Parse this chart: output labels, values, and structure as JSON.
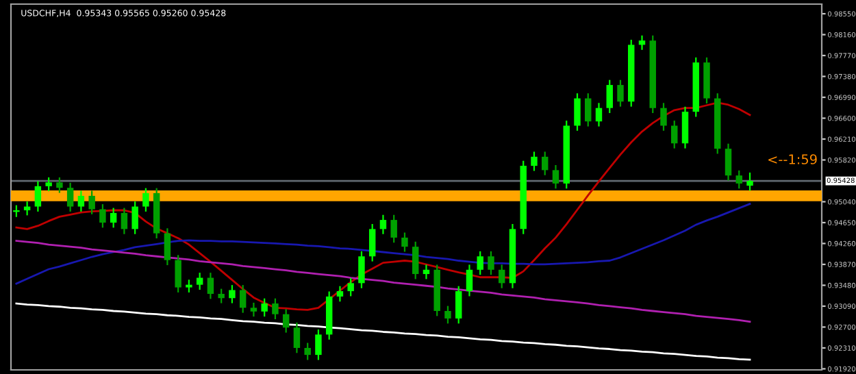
{
  "chart_data": {
    "type": "candlestick",
    "title": "USDCHF,H4  0.95343 0.95565 0.95260 0.95428",
    "colors": [
      "#00ff00",
      "#00ff00",
      "#00ff00",
      "#00ff00",
      "#00a000",
      "#00a000",
      "#00ff00",
      "#00a000",
      "#00a000",
      "#00ff00",
      "#00a000",
      "#00ff00",
      "#00ff00",
      "#00a000",
      "#00a000",
      "#00a000",
      "#00ff00",
      "#00ff00",
      "#00a000",
      "#00a000",
      "#00ff00",
      "#00a000",
      "#00a000",
      "#00ff00",
      "#00a000",
      "#00a000",
      "#00a000",
      "#00a000",
      "#00ff00",
      "#00ff00",
      "#00ff00",
      "#00ff00",
      "#00ff00",
      "#00ff00",
      "#00ff00",
      "#00a000",
      "#00a000",
      "#00a000",
      "#00ff00",
      "#00a000",
      "#00a000",
      "#00ff00",
      "#00ff00",
      "#00ff00",
      "#00a000",
      "#00a000",
      "#00ff00",
      "#00ff00",
      "#00ff00",
      "#00a000",
      "#00a000",
      "#00ff00",
      "#00ff00",
      "#00a000",
      "#00ff00",
      "#00ff00",
      "#00a000",
      "#00ff00",
      "#00ff00",
      "#00a000",
      "#00a000",
      "#00a000",
      "#00ff00",
      "#00ff00",
      "#00a000",
      "#00a000",
      "#00a000",
      "#00a000",
      "#00ff00"
    ],
    "categories": [
      null,
      null,
      null,
      null,
      null,
      null,
      null,
      null,
      null,
      null,
      null,
      null,
      null,
      null,
      null,
      null,
      null,
      null,
      null,
      null,
      null,
      null,
      null,
      null,
      null,
      null,
      null,
      null,
      null,
      null,
      null,
      null,
      null,
      null,
      null,
      null,
      null,
      null,
      null,
      null,
      null,
      null,
      null,
      null,
      null,
      null,
      null,
      null,
      null,
      null,
      null,
      null,
      null,
      null,
      null,
      null,
      null,
      null,
      null,
      null,
      null,
      null,
      null,
      null,
      null,
      null,
      null,
      null,
      null
    ],
    "ohlc": [
      [
        0.9485,
        0.9496,
        0.9477,
        0.9488
      ],
      [
        0.9488,
        0.9503,
        0.948,
        0.9495
      ],
      [
        0.9495,
        0.9541,
        0.9487,
        0.9533
      ],
      [
        0.9533,
        0.9548,
        0.9525,
        0.954
      ],
      [
        0.954,
        0.9548,
        0.9522,
        0.953
      ],
      [
        0.953,
        0.9538,
        0.9487,
        0.9495
      ],
      [
        0.9495,
        0.9523,
        0.9487,
        0.9515
      ],
      [
        0.9515,
        0.9523,
        0.9482,
        0.949
      ],
      [
        0.949,
        0.9498,
        0.9457,
        0.9465
      ],
      [
        0.9465,
        0.9491,
        0.9457,
        0.9483
      ],
      [
        0.9483,
        0.9491,
        0.9445,
        0.9453
      ],
      [
        0.9453,
        0.9503,
        0.9445,
        0.9495
      ],
      [
        0.9495,
        0.9528,
        0.9487,
        0.952
      ],
      [
        0.952,
        0.9528,
        0.9437,
        0.9445
      ],
      [
        0.9445,
        0.9453,
        0.9387,
        0.9395
      ],
      [
        0.9395,
        0.9403,
        0.9336,
        0.9344
      ],
      [
        0.9344,
        0.9357,
        0.9336,
        0.9349
      ],
      [
        0.9349,
        0.937,
        0.9341,
        0.9362
      ],
      [
        0.9362,
        0.937,
        0.9324,
        0.9332
      ],
      [
        0.9332,
        0.934,
        0.9316,
        0.9324
      ],
      [
        0.9324,
        0.9347,
        0.9316,
        0.9339
      ],
      [
        0.9339,
        0.9347,
        0.9298,
        0.9306
      ],
      [
        0.9306,
        0.9314,
        0.9291,
        0.9299
      ],
      [
        0.9299,
        0.9322,
        0.9291,
        0.9314
      ],
      [
        0.9314,
        0.9322,
        0.9286,
        0.9294
      ],
      [
        0.9294,
        0.9302,
        0.9261,
        0.9269
      ],
      [
        0.9269,
        0.9277,
        0.9223,
        0.9231
      ],
      [
        0.9231,
        0.9239,
        0.921,
        0.9218
      ],
      [
        0.9218,
        0.9264,
        0.921,
        0.9256
      ],
      [
        0.9256,
        0.9335,
        0.9248,
        0.9327
      ],
      [
        0.9327,
        0.9345,
        0.9319,
        0.9337
      ],
      [
        0.9337,
        0.936,
        0.9329,
        0.9352
      ],
      [
        0.9352,
        0.941,
        0.9344,
        0.9402
      ],
      [
        0.9402,
        0.9461,
        0.9394,
        0.9453
      ],
      [
        0.9453,
        0.9478,
        0.9445,
        0.947
      ],
      [
        0.947,
        0.9478,
        0.9429,
        0.9437
      ],
      [
        0.9437,
        0.9445,
        0.9412,
        0.942
      ],
      [
        0.942,
        0.9428,
        0.9361,
        0.9369
      ],
      [
        0.9369,
        0.9385,
        0.9361,
        0.9377
      ],
      [
        0.9377,
        0.9385,
        0.9292,
        0.93
      ],
      [
        0.93,
        0.9308,
        0.9278,
        0.9286
      ],
      [
        0.9286,
        0.9345,
        0.9278,
        0.9337
      ],
      [
        0.9337,
        0.9385,
        0.9329,
        0.9377
      ],
      [
        0.9377,
        0.941,
        0.9369,
        0.9402
      ],
      [
        0.9402,
        0.941,
        0.9369,
        0.9377
      ],
      [
        0.9377,
        0.9385,
        0.9344,
        0.9352
      ],
      [
        0.9352,
        0.9461,
        0.9344,
        0.9453
      ],
      [
        0.9453,
        0.9579,
        0.9445,
        0.9571
      ],
      [
        0.9571,
        0.9596,
        0.9563,
        0.9588
      ],
      [
        0.9588,
        0.9596,
        0.9555,
        0.9563
      ],
      [
        0.9563,
        0.9571,
        0.953,
        0.9538
      ],
      [
        0.9538,
        0.9654,
        0.953,
        0.9646
      ],
      [
        0.9646,
        0.9705,
        0.9638,
        0.9697
      ],
      [
        0.9697,
        0.9705,
        0.9646,
        0.9654
      ],
      [
        0.9654,
        0.9687,
        0.9646,
        0.9679
      ],
      [
        0.9679,
        0.973,
        0.9671,
        0.9722
      ],
      [
        0.9722,
        0.973,
        0.9683,
        0.9691
      ],
      [
        0.9691,
        0.9805,
        0.9683,
        0.9797
      ],
      [
        0.9797,
        0.9813,
        0.9789,
        0.9805
      ],
      [
        0.9805,
        0.9813,
        0.9671,
        0.9679
      ],
      [
        0.9679,
        0.9687,
        0.9638,
        0.9646
      ],
      [
        0.9646,
        0.9654,
        0.9605,
        0.9613
      ],
      [
        0.9613,
        0.968,
        0.9605,
        0.9672
      ],
      [
        0.9672,
        0.9772,
        0.9664,
        0.9764
      ],
      [
        0.9764,
        0.9772,
        0.9689,
        0.9697
      ],
      [
        0.9697,
        0.9705,
        0.9595,
        0.9603
      ],
      [
        0.9603,
        0.9611,
        0.9545,
        0.9553
      ],
      [
        0.9553,
        0.9561,
        0.953,
        0.9538
      ],
      [
        0.9534,
        0.9557,
        0.9526,
        0.9543
      ]
    ],
    "series": [
      {
        "type": "line",
        "color": "#c00000",
        "values": [
          0.9456,
          0.9453,
          0.9459,
          0.9468,
          0.9476,
          0.948,
          0.9484,
          0.9486,
          0.9487,
          0.9488,
          0.9488,
          0.9483,
          0.9467,
          0.9454,
          0.9445,
          0.9436,
          0.9424,
          0.9408,
          0.9392,
          0.9375,
          0.9358,
          0.9341,
          0.9325,
          0.9315,
          0.9306,
          0.9305,
          0.9303,
          0.9302,
          0.9306,
          0.9322,
          0.9338,
          0.9354,
          0.9368,
          0.9379,
          0.939,
          0.9392,
          0.9394,
          0.9392,
          0.9387,
          0.9382,
          0.9377,
          0.9372,
          0.9368,
          0.9363,
          0.9363,
          0.9363,
          0.9362,
          0.9374,
          0.9395,
          0.9417,
          0.9437,
          0.9462,
          0.9489,
          0.9516,
          0.9542,
          0.9567,
          0.9592,
          0.9615,
          0.9635,
          0.9651,
          0.9664,
          0.9675,
          0.9679,
          0.9679,
          0.9684,
          0.9689,
          0.9685,
          0.9677,
          0.9666
        ]
      },
      {
        "type": "line",
        "color": "#1818b0",
        "values": [
          0.9351,
          0.936,
          0.9369,
          0.9378,
          0.9383,
          0.9389,
          0.9395,
          0.9401,
          0.9406,
          0.941,
          0.9414,
          0.9419,
          0.9422,
          0.9425,
          0.9428,
          0.9431,
          0.9432,
          0.9431,
          0.9431,
          0.943,
          0.943,
          0.9429,
          0.9428,
          0.9427,
          0.9426,
          0.9425,
          0.9424,
          0.9422,
          0.9421,
          0.9419,
          0.9417,
          0.9416,
          0.9414,
          0.9412,
          0.941,
          0.9408,
          0.9406,
          0.9404,
          0.9401,
          0.9399,
          0.9397,
          0.9394,
          0.9392,
          0.939,
          0.9389,
          0.9389,
          0.9388,
          0.9388,
          0.9387,
          0.9387,
          0.9388,
          0.9389,
          0.939,
          0.9391,
          0.9393,
          0.9394,
          0.94,
          0.9408,
          0.9416,
          0.9424,
          0.9432,
          0.9441,
          0.945,
          0.9461,
          0.9469,
          0.9476,
          0.9484,
          0.9492,
          0.95
        ]
      },
      {
        "type": "line",
        "color": "#b020b0",
        "values": [
          0.9431,
          0.9429,
          0.9427,
          0.9424,
          0.9422,
          0.942,
          0.9418,
          0.9415,
          0.9413,
          0.9411,
          0.9409,
          0.9407,
          0.9404,
          0.9402,
          0.94,
          0.9398,
          0.9396,
          0.9393,
          0.9391,
          0.9389,
          0.9387,
          0.9384,
          0.9382,
          0.938,
          0.9378,
          0.9376,
          0.9373,
          0.9371,
          0.9369,
          0.9367,
          0.9365,
          0.9362,
          0.936,
          0.9358,
          0.9356,
          0.9353,
          0.9351,
          0.9349,
          0.9347,
          0.9345,
          0.9342,
          0.934,
          0.9338,
          0.9336,
          0.9334,
          0.9331,
          0.9329,
          0.9327,
          0.9325,
          0.9322,
          0.932,
          0.9318,
          0.9316,
          0.9314,
          0.9311,
          0.9309,
          0.9307,
          0.9305,
          0.9302,
          0.93,
          0.9298,
          0.9296,
          0.9294,
          0.9291,
          0.9289,
          0.9287,
          0.9285,
          0.9283,
          0.928
        ]
      },
      {
        "type": "line",
        "color": "#ffffff",
        "values": [
          0.9314,
          0.9312,
          0.9311,
          0.9309,
          0.9308,
          0.9306,
          0.9305,
          0.9303,
          0.9302,
          0.93,
          0.9299,
          0.9297,
          0.9295,
          0.9294,
          0.9292,
          0.9291,
          0.9289,
          0.9288,
          0.9286,
          0.9285,
          0.9283,
          0.9281,
          0.928,
          0.9278,
          0.9277,
          0.9275,
          0.9274,
          0.9272,
          0.9271,
          0.9269,
          0.9268,
          0.9266,
          0.9264,
          0.9263,
          0.9261,
          0.926,
          0.9258,
          0.9257,
          0.9255,
          0.9254,
          0.9252,
          0.9251,
          0.9249,
          0.9247,
          0.9246,
          0.9244,
          0.9243,
          0.9241,
          0.924,
          0.9238,
          0.9237,
          0.9235,
          0.9234,
          0.9232,
          0.923,
          0.9229,
          0.9227,
          0.9226,
          0.9224,
          0.9223,
          0.9221,
          0.922,
          0.9218,
          0.9216,
          0.9215,
          0.9213,
          0.9212,
          0.921,
          0.9209
        ]
      }
    ],
    "bands": [
      {
        "axis": "y",
        "from": 0.9505,
        "to": 0.9525,
        "color": "#ffa500"
      }
    ],
    "ref_lines": [
      {
        "axis": "y",
        "value": 0.95428,
        "label": "0.95428",
        "color": "#606870"
      }
    ],
    "annotations": [
      "<--1:59"
    ],
    "ylim": [
      0.919,
      0.9873
    ],
    "yticks": [
      {
        "value": 0.9855,
        "label": "0.98550"
      },
      {
        "value": 0.9816,
        "label": "0.98160"
      },
      {
        "value": 0.9777,
        "label": "0.97770"
      },
      {
        "value": 0.9738,
        "label": "0.97380"
      },
      {
        "value": 0.9699,
        "label": "0.96990"
      },
      {
        "value": 0.966,
        "label": "0.96600"
      },
      {
        "value": 0.9621,
        "label": "0.96210"
      },
      {
        "value": 0.9582,
        "label": "0.95820"
      },
      {
        "value": 0.9504,
        "label": "0.95040"
      },
      {
        "value": 0.9465,
        "label": "0.94650"
      },
      {
        "value": 0.9426,
        "label": "0.94260"
      },
      {
        "value": 0.9387,
        "label": "0.93870"
      },
      {
        "value": 0.9348,
        "label": "0.93480"
      },
      {
        "value": 0.9309,
        "label": "0.93090"
      },
      {
        "value": 0.927,
        "label": "0.92700"
      },
      {
        "value": 0.9231,
        "label": "0.92310"
      },
      {
        "value": 0.9192,
        "label": "0.91920"
      }
    ],
    "tick_labels": "y",
    "grid": false,
    "legend": false
  }
}
